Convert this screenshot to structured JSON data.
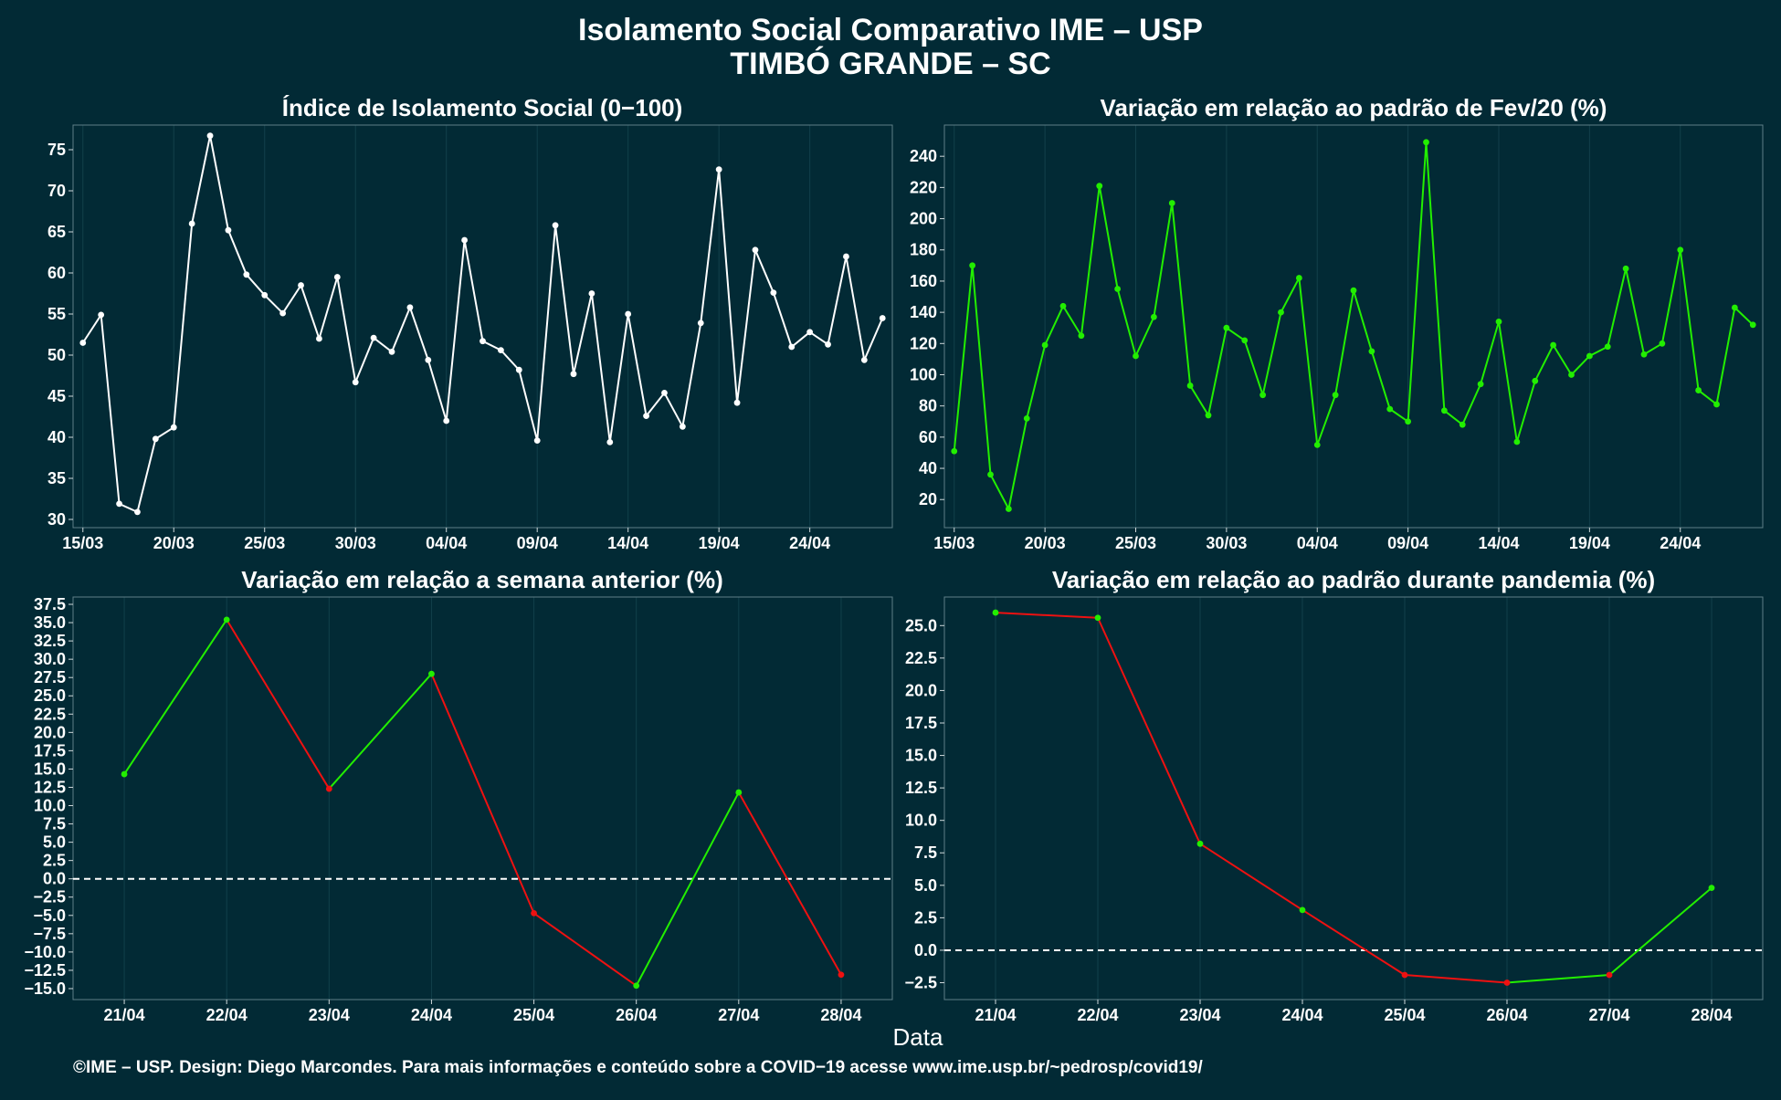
{
  "figure": {
    "title_line1": "Isolamento Social Comparativo IME – USP",
    "title_line2": "TIMBÓ GRANDE – SC",
    "xlabel": "Data",
    "caption": "©IME – USP. Design: Diego Marcondes. Para mais informações e conteúdo sobre a COVID−19 acesse www.ime.usp.br/~pedrosp/covid19/"
  },
  "colors": {
    "background": "#022a35",
    "grid": "#12404b",
    "white_series": "#ffffff",
    "positive": "#22ee00",
    "negative": "#ee1111",
    "zero_line": "#ffffff"
  },
  "chart_data": [
    {
      "type": "line",
      "title": "Índice de Isolamento Social (0−100)",
      "x": [
        "15/03",
        "16/03",
        "17/03",
        "18/03",
        "19/03",
        "20/03",
        "21/03",
        "22/03",
        "23/03",
        "24/03",
        "25/03",
        "26/03",
        "27/03",
        "28/03",
        "29/03",
        "30/03",
        "31/03",
        "01/04",
        "02/04",
        "03/04",
        "04/04",
        "05/04",
        "06/04",
        "07/04",
        "08/04",
        "09/04",
        "10/04",
        "11/04",
        "12/04",
        "13/04",
        "14/04",
        "15/04",
        "16/04",
        "17/04",
        "18/04",
        "19/04",
        "20/04",
        "21/04",
        "22/04",
        "23/04",
        "24/04",
        "25/04",
        "26/04",
        "27/04",
        "28/04"
      ],
      "x_tick_labels": [
        "15/03",
        "20/03",
        "25/03",
        "30/03",
        "04/04",
        "09/04",
        "14/04",
        "19/04",
        "24/04"
      ],
      "y_ticks": [
        30,
        35,
        40,
        45,
        50,
        55,
        60,
        65,
        70,
        75
      ],
      "ylim": [
        29,
        78
      ],
      "color": "white",
      "values": [
        51.5,
        54.9,
        31.9,
        30.9,
        39.8,
        41.2,
        66.0,
        76.7,
        65.2,
        59.8,
        57.3,
        55.1,
        58.5,
        52.0,
        59.5,
        46.7,
        52.1,
        50.4,
        55.8,
        49.4,
        42.0,
        64.0,
        51.7,
        50.6,
        48.2,
        39.6,
        65.8,
        47.7,
        57.5,
        39.4,
        55.0,
        42.6,
        45.4,
        41.3,
        53.9,
        72.6,
        44.2,
        62.8,
        57.6,
        51.0,
        52.8,
        51.3,
        62.0,
        49.4,
        54.5
      ]
    },
    {
      "type": "line",
      "title": "Variação em relação ao padrão de Fev/20 (%)",
      "x": [
        "15/03",
        "16/03",
        "17/03",
        "18/03",
        "19/03",
        "20/03",
        "21/03",
        "22/03",
        "23/03",
        "24/03",
        "25/03",
        "26/03",
        "27/03",
        "28/03",
        "29/03",
        "30/03",
        "31/03",
        "01/04",
        "02/04",
        "03/04",
        "04/04",
        "05/04",
        "06/04",
        "07/04",
        "08/04",
        "09/04",
        "10/04",
        "11/04",
        "12/04",
        "13/04",
        "14/04",
        "15/04",
        "16/04",
        "17/04",
        "18/04",
        "19/04",
        "20/04",
        "21/04",
        "22/04",
        "23/04",
        "24/04",
        "25/04",
        "26/04",
        "27/04",
        "28/04"
      ],
      "x_tick_labels": [
        "15/03",
        "20/03",
        "25/03",
        "30/03",
        "04/04",
        "09/04",
        "14/04",
        "19/04",
        "24/04"
      ],
      "y_ticks": [
        20,
        40,
        60,
        80,
        100,
        120,
        140,
        160,
        180,
        200,
        220,
        240
      ],
      "ylim": [
        2,
        260
      ],
      "color": "positive",
      "values": [
        51,
        170,
        36,
        14,
        72,
        119,
        144,
        125,
        221,
        155,
        112,
        137,
        210,
        93,
        74,
        130,
        122,
        87,
        140,
        162,
        55,
        87,
        154,
        115,
        78,
        70,
        249,
        77,
        68,
        94,
        134,
        57,
        96,
        119,
        100,
        112,
        118,
        168,
        113,
        120,
        180,
        90,
        81,
        143,
        132
      ]
    },
    {
      "type": "line",
      "title": "Variação em relação a semana anterior (%)",
      "x": [
        "21/04",
        "22/04",
        "23/04",
        "24/04",
        "25/04",
        "26/04",
        "27/04",
        "28/04"
      ],
      "y_ticks": [
        -15.0,
        -12.5,
        -10.0,
        -7.5,
        -5.0,
        -2.5,
        0.0,
        2.5,
        5.0,
        7.5,
        10.0,
        12.5,
        15.0,
        17.5,
        20.0,
        22.5,
        25.0,
        27.5,
        30.0,
        32.5,
        35.0,
        37.5
      ],
      "ylim": [
        -16.5,
        38.5
      ],
      "reference_line": 0,
      "color_rule": "green when rising, red when falling",
      "values": [
        14.3,
        35.4,
        12.3,
        28.0,
        -4.7,
        -14.6,
        11.8,
        -13.1
      ]
    },
    {
      "type": "line",
      "title": "Variação em relação ao padrão durante pandemia (%)",
      "x": [
        "21/04",
        "22/04",
        "23/04",
        "24/04",
        "25/04",
        "26/04",
        "27/04",
        "28/04"
      ],
      "y_ticks": [
        -2.5,
        0.0,
        2.5,
        5.0,
        7.5,
        10.0,
        12.5,
        15.0,
        17.5,
        20.0,
        22.5,
        25.0
      ],
      "ylim": [
        -3.8,
        27.2
      ],
      "reference_line": 0,
      "color_rule": "green when rising or above zero, red when falling below zero",
      "values": [
        26.0,
        25.6,
        8.2,
        3.1,
        -1.9,
        -2.5,
        -1.9,
        4.8
      ]
    }
  ]
}
